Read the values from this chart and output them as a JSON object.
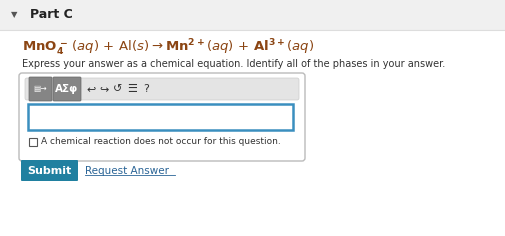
{
  "bg_color": "#f5f5f5",
  "white": "#ffffff",
  "part_c_text": "Part C",
  "eq_color": "#8B4513",
  "instruction_text": "Express your answer as a chemical equation. Identify all of the phases in your answer.",
  "instruction_color": "#333333",
  "toolbar_bg": "#e8e8e8",
  "toolbar_btn_bg": "#7a7a7a",
  "toolbar_btn_color": "#ffffff",
  "input_border_color": "#3a8fbf",
  "checkbox_text": "A chemical reaction does not occur for this question.",
  "submit_bg": "#2080a0",
  "submit_text": "Submit",
  "submit_text_color": "#ffffff",
  "request_answer_text": "Request Answer",
  "request_answer_color": "#2a6496",
  "panel_border": "#bbbbbb",
  "header_bg": "#f0f0f0",
  "header_border": "#dddddd",
  "figw": 5.06,
  "figh": 2.36,
  "dpi": 100
}
